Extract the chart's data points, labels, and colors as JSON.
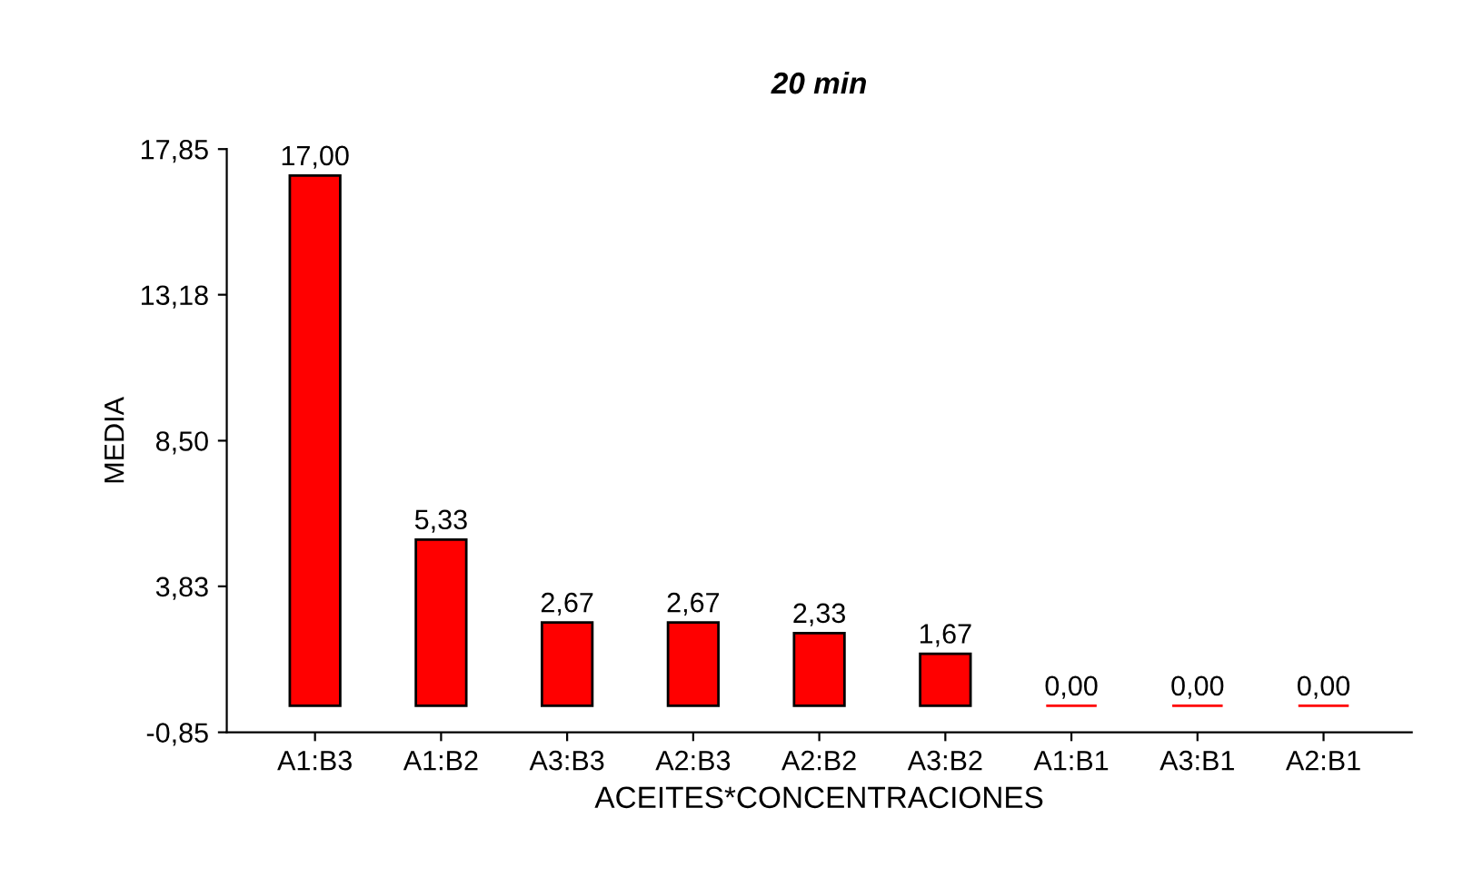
{
  "chart_data": {
    "type": "bar",
    "title": "20 min",
    "xlabel": "ACEITES*CONCENTRACIONES",
    "ylabel": "MEDIA",
    "categories": [
      "A1:B3",
      "A1:B2",
      "A3:B3",
      "A2:B3",
      "A2:B2",
      "A3:B2",
      "A1:B1",
      "A3:B1",
      "A2:B1"
    ],
    "values": [
      17.0,
      5.33,
      2.67,
      2.67,
      2.33,
      1.67,
      0.0,
      0.0,
      0.0
    ],
    "value_labels": [
      "17,00",
      "5,33",
      "2,67",
      "2,67",
      "2,33",
      "1,67",
      "0,00",
      "0,00",
      "0,00"
    ],
    "color": "#ff0000",
    "ylim": [
      -0.85,
      17.85
    ],
    "yticks": [
      {
        "value": -0.85,
        "label": "-0,85"
      },
      {
        "value": 3.83,
        "label": "3,83"
      },
      {
        "value": 8.5,
        "label": "8,50"
      },
      {
        "value": 13.18,
        "label": "13,18"
      },
      {
        "value": 17.85,
        "label": "17,85"
      }
    ],
    "grid": false,
    "legend": false
  }
}
